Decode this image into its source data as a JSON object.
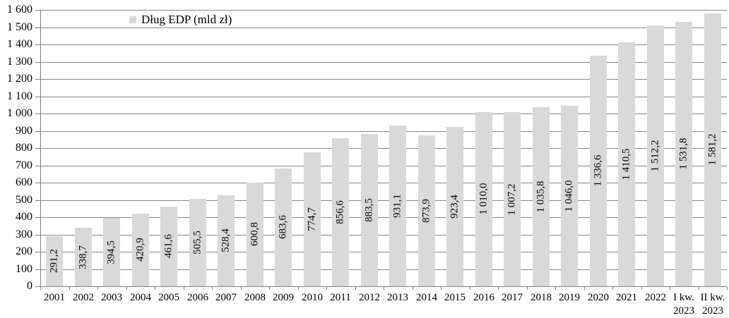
{
  "chart_data": {
    "type": "bar",
    "legend_label": "Dług EDP (mld zł)",
    "legend_position": "top-inside",
    "grid": true,
    "categories": [
      "2001",
      "2002",
      "2003",
      "2004",
      "2005",
      "2006",
      "2007",
      "2008",
      "2009",
      "2010",
      "2011",
      "2012",
      "2013",
      "2014",
      "2015",
      "2016",
      "2017",
      "2018",
      "2019",
      "2020",
      "2021",
      "2022",
      "I kw.\n2023",
      "II kw.\n2023"
    ],
    "values": [
      291.2,
      338.7,
      394.5,
      420.9,
      461.6,
      505.5,
      528.4,
      600.8,
      683.6,
      774.7,
      856.6,
      883.5,
      931.1,
      873.9,
      923.4,
      1010.0,
      1007.2,
      1035.8,
      1046.0,
      1336.6,
      1410.5,
      1512.2,
      1531.8,
      1581.2
    ],
    "value_labels": [
      "291,2",
      "338,7",
      "394,5",
      "420,9",
      "461,6",
      "505,5",
      "528,4",
      "600,8",
      "683,6",
      "774,7",
      "856,6",
      "883,5",
      "931,1",
      "873,9",
      "923,4",
      "1 010,0",
      "1 007,2",
      "1 035,8",
      "1 046,0",
      "1 336,6",
      "1 410,5",
      "1 512,2",
      "1 531,8",
      "1 581,2"
    ],
    "ylim": [
      0,
      1600
    ],
    "ytick_step": 100,
    "ytick_labels": [
      "0",
      "100",
      "200",
      "300",
      "400",
      "500",
      "600",
      "700",
      "800",
      "900",
      "1 000",
      "1 100",
      "1 200",
      "1 300",
      "1 400",
      "1 500",
      "1 600"
    ],
    "xlabel": "",
    "ylabel": "",
    "bar_color": "#d9d9d9",
    "gridline_color": "#878787",
    "axis_color": "#7f7f7f",
    "text_color": "#000000",
    "background_color": "#ffffff"
  }
}
